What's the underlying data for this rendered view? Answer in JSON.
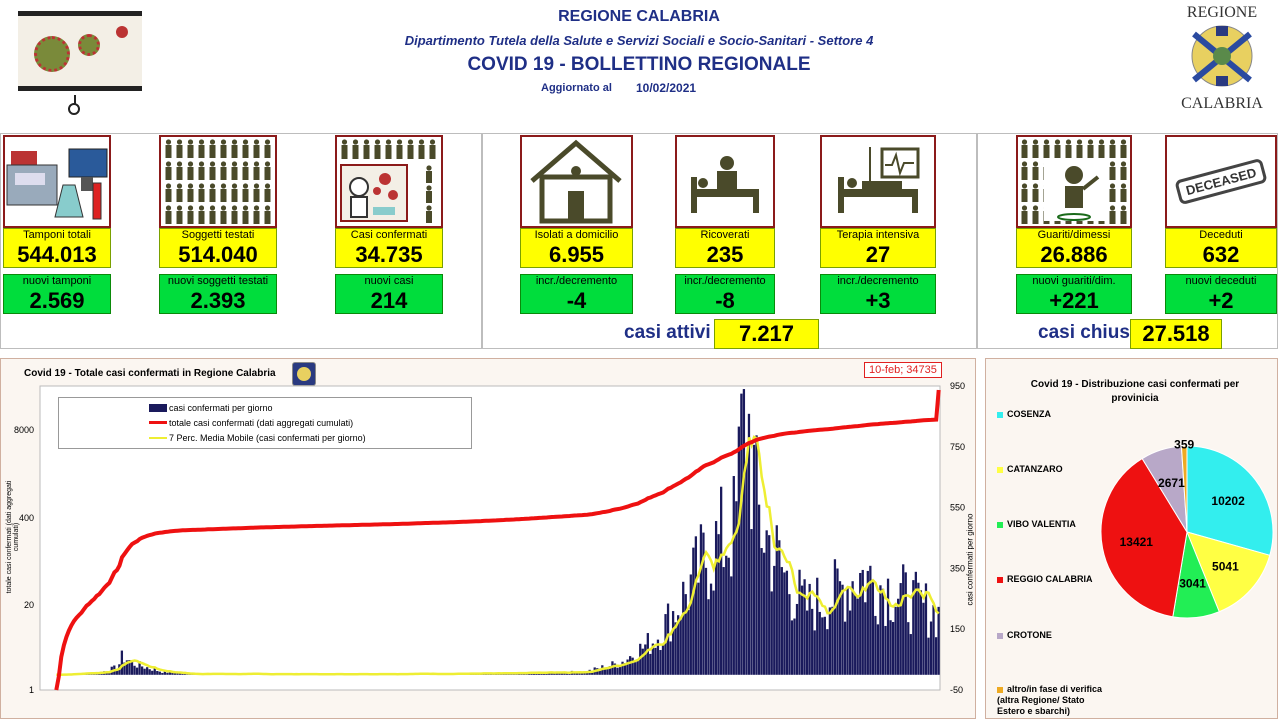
{
  "header": {
    "region": "REGIONE CALABRIA",
    "department": "Dipartimento Tutela della Salute e Servizi Sociali e Socio-Sanitari - Settore 4",
    "bulletin": "COVID 19 - BOLLETTINO REGIONALE",
    "updated_label": "Aggiornato al",
    "updated_date": "10/02/2021",
    "logo_top": "REGIONE",
    "logo_bottom": "CALABRIA"
  },
  "kpis": {
    "tamponi": {
      "label": "Tamponi totali",
      "value": "544.013",
      "sub_label": "nuovi tamponi",
      "sub_value": "2.569"
    },
    "soggetti": {
      "label": "Soggetti testati",
      "value": "514.040",
      "sub_label": "nuovi soggetti testati",
      "sub_value": "2.393"
    },
    "casi": {
      "label": "Casi confermati",
      "value": "34.735",
      "sub_label": "nuovi casi",
      "sub_value": "214"
    },
    "isolati": {
      "label": "Isolati a domicilio",
      "value": "6.955",
      "sub_label": "incr./decremento",
      "sub_value": "-4"
    },
    "ricoverati": {
      "label": "Ricoverati",
      "value": "235",
      "sub_label": "incr./decremento",
      "sub_value": "-8"
    },
    "terapia": {
      "label": "Terapia intensiva",
      "value": "27",
      "sub_label": "incr./decremento",
      "sub_value": "+3"
    },
    "guariti": {
      "label": "Guariti/dimessi",
      "value": "26.886",
      "sub_label": "nuovi guariti/dim.",
      "sub_value": "+221"
    },
    "deceduti": {
      "label": "Deceduti",
      "value": "632",
      "sub_label": "nuovi deceduti",
      "sub_value": "+2"
    },
    "stamp_text": "DECEASED"
  },
  "summary": {
    "attivi_label": "casi attivi",
    "attivi_value": "7.217",
    "chiusi_label": "casi chiusi",
    "chiusi_value": "27.518"
  },
  "colors": {
    "yellow": "#ffff00",
    "green": "#00dd3c",
    "navy": "#1f2f86",
    "bars": "#1a1a5c",
    "cumulative": "#ee1111",
    "moving_avg": "#eeee33"
  },
  "chart_data": [
    {
      "type": "bar",
      "title": "Covid 19 - Totale casi confermati in Regione Calabria",
      "callout": "10-feb; 34735",
      "left_axis_label": "totale casi confermati (dati aggregati cumulati)",
      "right_axis_label": "casi confermati per giorno",
      "left_ticks": [
        "8000",
        "400",
        "20",
        "1"
      ],
      "right_ticks": [
        "950",
        "750",
        "550",
        "350",
        "150",
        "-50"
      ],
      "right_ylim": [
        -50,
        950
      ],
      "legend": [
        "casi confermati per giorno",
        "totale casi confermati (dati aggregati cumulati)",
        "7 Perc. Media Mobile (casi confermati per giorno)"
      ],
      "series_summary": {
        "cumulative_end": 34735,
        "daily_peak": 940,
        "daily_last": 214
      },
      "daily_profile": [
        {
          "x": 0,
          "y": 0
        },
        {
          "x": 0.05,
          "y": 8
        },
        {
          "x": 0.07,
          "y": 25
        },
        {
          "x": 0.075,
          "y": 60
        },
        {
          "x": 0.09,
          "y": 35
        },
        {
          "x": 0.12,
          "y": 10
        },
        {
          "x": 0.15,
          "y": 3
        },
        {
          "x": 0.3,
          "y": 2
        },
        {
          "x": 0.5,
          "y": 4
        },
        {
          "x": 0.6,
          "y": 10
        },
        {
          "x": 0.64,
          "y": 40
        },
        {
          "x": 0.68,
          "y": 120
        },
        {
          "x": 0.71,
          "y": 250
        },
        {
          "x": 0.74,
          "y": 400
        },
        {
          "x": 0.77,
          "y": 480
        },
        {
          "x": 0.78,
          "y": 940
        },
        {
          "x": 0.795,
          "y": 520
        },
        {
          "x": 0.81,
          "y": 420
        },
        {
          "x": 0.83,
          "y": 300
        },
        {
          "x": 0.85,
          "y": 220
        },
        {
          "x": 0.88,
          "y": 260
        },
        {
          "x": 0.91,
          "y": 330
        },
        {
          "x": 0.94,
          "y": 290
        },
        {
          "x": 0.97,
          "y": 240
        },
        {
          "x": 1.0,
          "y": 200
        }
      ]
    },
    {
      "type": "pie",
      "title": "Covid 19 - Distribuzione casi confermati per provinicia",
      "categories": [
        "COSENZA",
        "CATANZARO",
        "VIBO VALENTIA",
        "REGGIO CALABRIA",
        "CROTONE",
        "altro/in fase di verifica (altra Regione/ Stato Estero e sbarchi)"
      ],
      "values": [
        10202,
        5041,
        3041,
        13421,
        2671,
        359
      ],
      "colors": [
        "#33eeee",
        "#ffff44",
        "#22ee55",
        "#ee1111",
        "#b8a8c8",
        "#eeaa22"
      ]
    }
  ]
}
